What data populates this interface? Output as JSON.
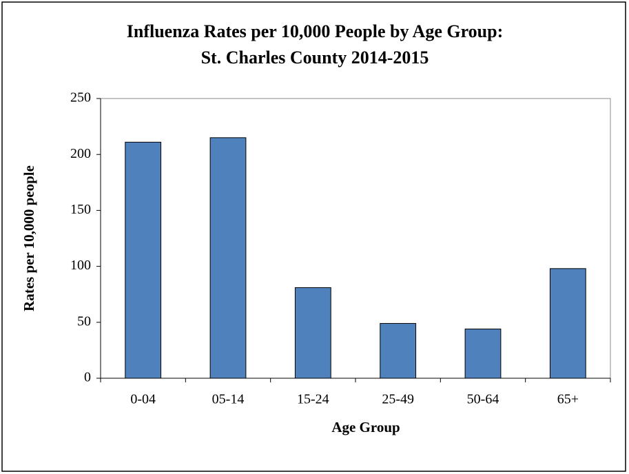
{
  "chart_data": {
    "type": "bar",
    "title": [
      "Influenza Rates per 10,000 People by Age Group:",
      "St. Charles County 2014-2015"
    ],
    "xlabel": "Age Group",
    "ylabel": "Rates per 10,000 people",
    "categories": [
      "0-04",
      "05-14",
      "15-24",
      "25-49",
      "50-64",
      "65+"
    ],
    "values": [
      211,
      215,
      81,
      49,
      44,
      98
    ],
    "color": "#4f81bd",
    "ylim": [
      0,
      250
    ],
    "yticks": [
      0,
      50,
      100,
      150,
      200,
      250
    ],
    "grid": false
  }
}
